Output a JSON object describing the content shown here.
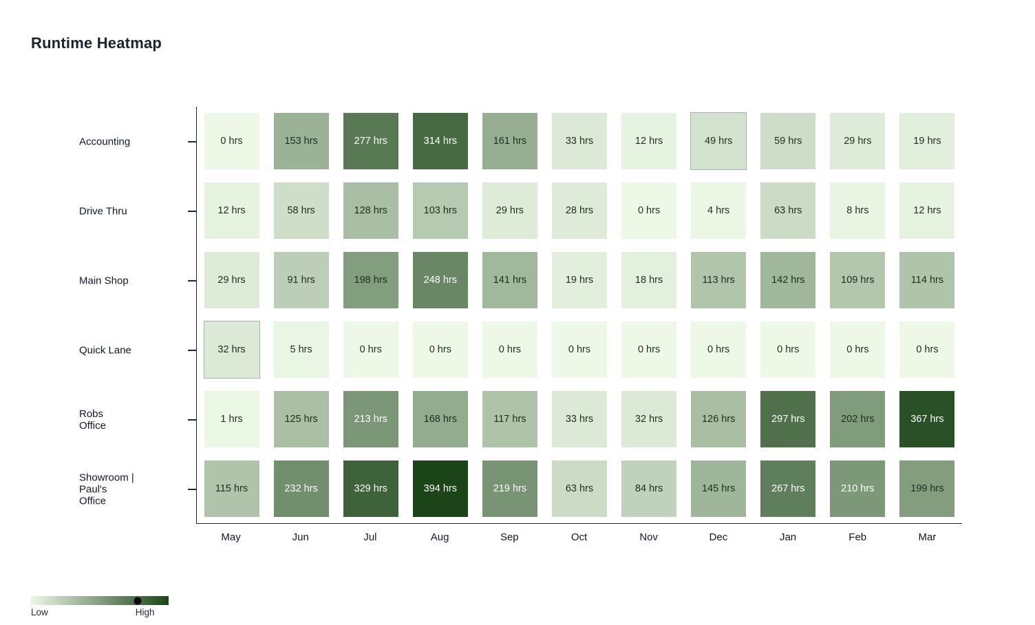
{
  "title": "Runtime Heatmap",
  "chart_data": {
    "type": "heatmap",
    "unit": "hrs",
    "rows": [
      [
        "Accounting"
      ],
      [
        "Drive Thru"
      ],
      [
        "Main Shop"
      ],
      [
        "Quick Lane"
      ],
      [
        "Robs",
        "Office"
      ],
      [
        "Showroom |",
        "Paul's",
        "Office"
      ]
    ],
    "columns": [
      "May",
      "Jun",
      "Jul",
      "Aug",
      "Sep",
      "Oct",
      "Nov",
      "Dec",
      "Jan",
      "Feb",
      "Mar"
    ],
    "values": [
      [
        0,
        153,
        277,
        314,
        161,
        33,
        12,
        49,
        59,
        29,
        19
      ],
      [
        12,
        58,
        128,
        103,
        29,
        28,
        0,
        4,
        63,
        8,
        12
      ],
      [
        29,
        91,
        198,
        248,
        141,
        19,
        18,
        113,
        142,
        109,
        114
      ],
      [
        32,
        5,
        0,
        0,
        0,
        0,
        0,
        0,
        0,
        0,
        0
      ],
      [
        1,
        125,
        213,
        168,
        117,
        33,
        32,
        126,
        297,
        202,
        367
      ],
      [
        115,
        232,
        329,
        394,
        219,
        63,
        84,
        145,
        267,
        210,
        199
      ]
    ],
    "max_value": 394,
    "min_color": "#edf8e7",
    "max_color": "#1b4418",
    "highlighted_cells": [
      [
        0,
        7
      ],
      [
        3,
        0
      ]
    ],
    "legend": {
      "low_label": "Low",
      "high_label": "High",
      "marker_position": 0.776
    }
  }
}
